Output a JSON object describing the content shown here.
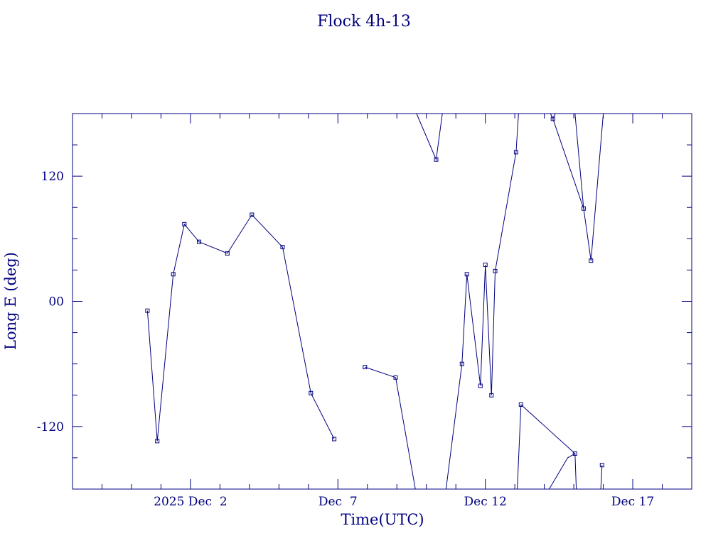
{
  "colors": {
    "ink": "#00007f",
    "background": "#ffffff"
  },
  "chart_data": {
    "type": "line",
    "title": "Flock 4h-13",
    "xlabel": "Time(UTC)",
    "ylabel": "Long E (deg)",
    "x_unit": "days",
    "xlim": [
      "2025-11-28T00:00",
      "2025-12-19T00:00"
    ],
    "ylim": [
      -180,
      180
    ],
    "x_tick_labels": [
      {
        "label": "2025 Dec  2",
        "date": "2025-12-02T00:00"
      },
      {
        "label": "Dec  7",
        "date": "2025-12-07T00:00"
      },
      {
        "label": "Dec 12",
        "date": "2025-12-12T00:00"
      },
      {
        "label": "Dec 17",
        "date": "2025-12-17T00:00"
      }
    ],
    "y_tick_labels": [
      {
        "label": "120",
        "value": 120
      },
      {
        "label": "00",
        "value": 0
      },
      {
        "label": "-120",
        "value": -120
      }
    ],
    "series": [
      {
        "x": [
          "2025-11-30T13:00",
          "2025-11-30T21:00",
          "2025-12-01T10:00",
          "2025-12-01T19:00",
          "2025-12-02T07:00",
          "2025-12-03T06:00",
          "2025-12-04T02:00",
          "2025-12-05T03:00",
          "2025-12-06T02:00",
          "2025-12-06T21:00"
        ],
        "y": [
          -9,
          -134,
          26,
          74,
          57,
          46,
          83,
          52,
          -88,
          -132
        ]
      },
      {
        "x": [
          "2025-12-07T22:00",
          "2025-12-08T23:00"
        ],
        "y": [
          -63,
          -73
        ]
      },
      {
        "x": [
          "2025-12-10T08:00"
        ],
        "y": [
          136
        ]
      },
      {
        "x": [
          "2025-12-11T05:00",
          "2025-12-11T09:00",
          "2025-12-11T20:00",
          "2025-12-12T00:00",
          "2025-12-12T05:00",
          "2025-12-12T08:00",
          "2025-12-13T01:00"
        ],
        "y": [
          -60,
          26,
          -81,
          35,
          -90,
          29,
          143
        ]
      },
      {
        "x": [
          "2025-12-13T05:00",
          "2025-12-15T01:00"
        ],
        "y": [
          -99,
          -146
        ]
      },
      {
        "x": [
          "2025-12-14T07:00",
          "2025-12-15T08:00",
          "2025-12-15T14:00"
        ],
        "y": [
          175,
          89,
          39
        ]
      },
      {
        "x": [
          "2025-12-15T23:00"
        ],
        "y": [
          -157
        ]
      }
    ],
    "grid": false
  }
}
